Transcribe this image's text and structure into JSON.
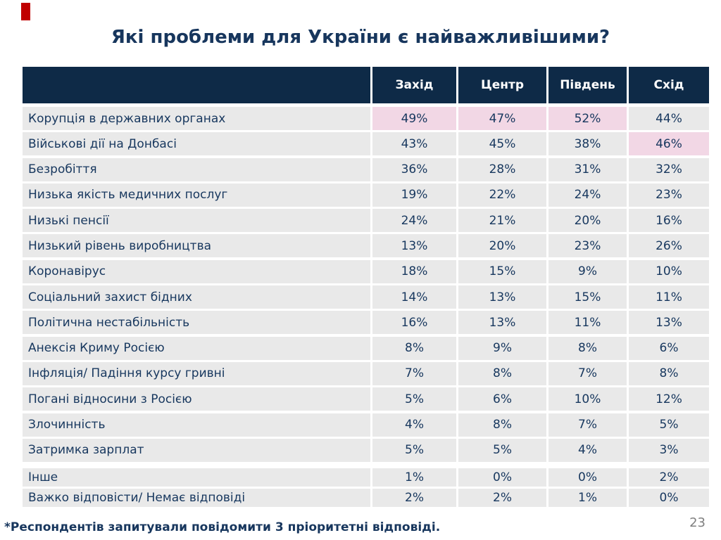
{
  "slide": {
    "title": "Які проблеми для України є найважливішими?",
    "footnote": "*Респондентів запитували повідомити 3 пріоритетні відповіді.",
    "page_number": "23"
  },
  "colors": {
    "accent_red": "#C00000",
    "header_bg": "#0E2A47",
    "cell_bg": "#E9E9E9",
    "highlight_pink": "#F2D7E5",
    "text_navy": "#17375E",
    "title_navy": "#17365D",
    "page_number_gray": "#7F7F7F"
  },
  "chart_data": {
    "type": "table",
    "title": "Які проблеми для України є найважливішими?",
    "columns": [
      "Захід",
      "Центр",
      "Південь",
      "Схід"
    ],
    "value_unit": "%",
    "highlight_meaning": "highest values highlighted in pink",
    "rows": [
      {
        "label": "Корупція в державних органах",
        "values": [
          "49%",
          "47%",
          "52%",
          "44%"
        ],
        "highlight": [
          true,
          true,
          true,
          false
        ]
      },
      {
        "label": "Військові дії на Донбасі",
        "values": [
          "43%",
          "45%",
          "38%",
          "46%"
        ],
        "highlight": [
          false,
          false,
          false,
          true
        ]
      },
      {
        "label": "Безробіття",
        "values": [
          "36%",
          "28%",
          "31%",
          "32%"
        ]
      },
      {
        "label": "Низька якість медичних послуг",
        "values": [
          "19%",
          "22%",
          "24%",
          "23%"
        ]
      },
      {
        "label": "Низькі пенсії",
        "values": [
          "24%",
          "21%",
          "20%",
          "16%"
        ]
      },
      {
        "label": "Низький рівень виробництва",
        "values": [
          "13%",
          "20%",
          "23%",
          "26%"
        ]
      },
      {
        "label": "Коронавірус",
        "values": [
          "18%",
          "15%",
          "9%",
          "10%"
        ]
      },
      {
        "label": "Соціальний захист бідних",
        "values": [
          "14%",
          "13%",
          "15%",
          "11%"
        ]
      },
      {
        "label": "Політична нестабільність",
        "values": [
          "16%",
          "13%",
          "11%",
          "13%"
        ]
      },
      {
        "label": "Анексія Криму Росією",
        "values": [
          "8%",
          "9%",
          "8%",
          "6%"
        ]
      },
      {
        "label": "Інфляція/ Падіння курсу гривні",
        "values": [
          "7%",
          "8%",
          "7%",
          "8%"
        ]
      },
      {
        "label": "Погані відносини з Росією",
        "values": [
          "5%",
          "6%",
          "10%",
          "12%"
        ]
      },
      {
        "label": "Злочинність",
        "values": [
          "4%",
          "8%",
          "7%",
          "5%"
        ]
      },
      {
        "label": "Затримка зарплат",
        "values": [
          "5%",
          "5%",
          "4%",
          "3%"
        ]
      },
      {
        "label": "Інше",
        "values": [
          "1%",
          "0%",
          "0%",
          "2%"
        ],
        "short": true
      },
      {
        "label": "Важко відповісти/ Немає відповіді",
        "values": [
          "2%",
          "2%",
          "1%",
          "0%"
        ],
        "short": true
      }
    ]
  }
}
